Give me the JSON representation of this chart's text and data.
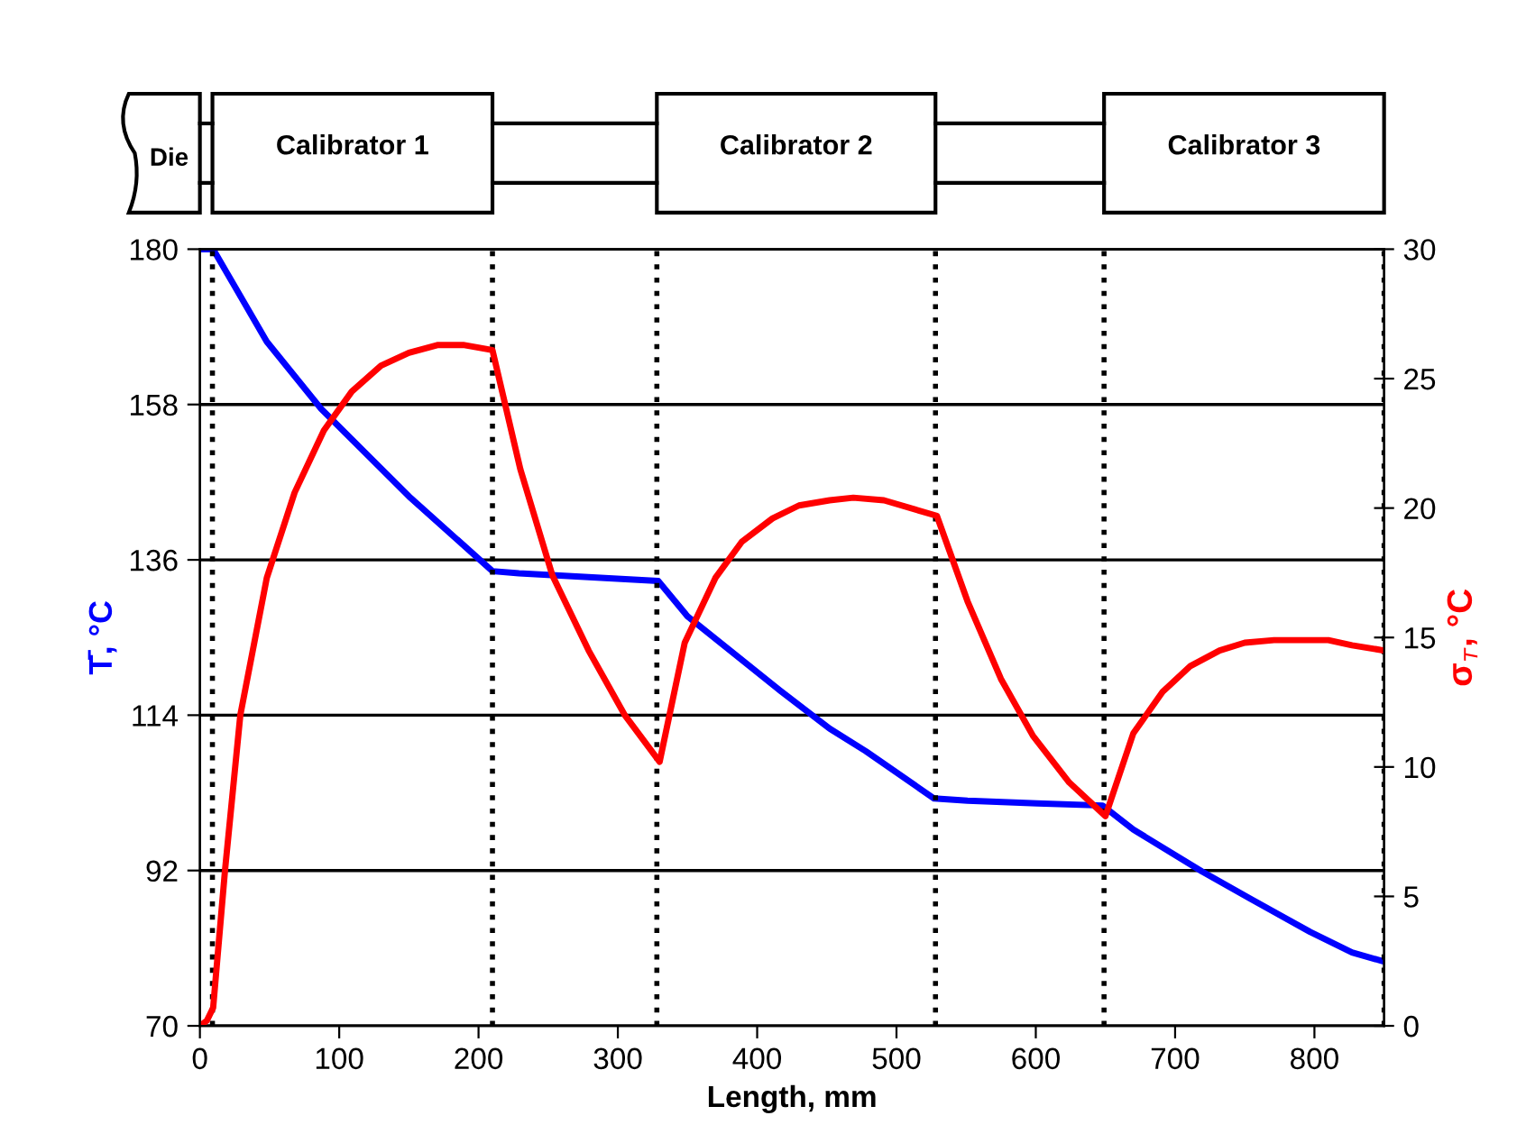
{
  "chart_data": {
    "type": "line",
    "xlabel": "Length, mm",
    "ylabel": "T̄, °C",
    "y2label": "σ$_{т}$, °C",
    "xlim": [
      0,
      850
    ],
    "xticks": [
      0,
      100,
      200,
      300,
      400,
      500,
      600,
      700,
      800
    ],
    "ylim": [
      70,
      180
    ],
    "yticks": [
      70,
      92,
      114,
      136,
      158,
      180
    ],
    "y2lim": [
      0,
      30
    ],
    "y2ticks": [
      0,
      5,
      10,
      15,
      20,
      25,
      30
    ],
    "grid": "y",
    "marker": "none",
    "line_style": "solid",
    "series": [
      {
        "color": "#0000ff",
        "x": [
          0,
          9.5,
          48,
          87,
          150,
          210,
          229,
          329,
          350,
          417,
          452,
          478,
          527,
          551,
          601,
          648,
          670,
          719,
          754,
          797,
          827,
          850
        ],
        "values": [
          180,
          180,
          166.9,
          157.4,
          145,
          134.4,
          134.1,
          133,
          128,
          117.4,
          112.1,
          108.9,
          102.2,
          101.9,
          101.5,
          101.2,
          97.8,
          91.9,
          88,
          83.3,
          80.4,
          79.1
        ]
      },
      {
        "color": "#ff0000",
        "axis": "y2",
        "x": [
          0,
          5,
          9.5,
          18,
          29,
          48,
          68,
          89,
          109,
          130,
          150,
          171,
          189,
          210,
          230,
          253,
          279,
          305,
          330,
          348,
          370,
          389,
          411,
          430,
          452,
          469,
          491,
          529,
          551,
          575,
          598,
          624,
          650,
          670,
          691,
          711,
          732,
          750,
          771,
          810,
          827,
          850
        ],
        "values": [
          0,
          0.2,
          0.7,
          6.0,
          12.0,
          17.3,
          20.6,
          23.0,
          24.5,
          25.5,
          26.0,
          26.3,
          26.3,
          26.1,
          21.5,
          17.4,
          14.5,
          12.0,
          10.2,
          14.8,
          17.3,
          18.7,
          19.6,
          20.1,
          20.3,
          20.4,
          20.3,
          19.7,
          16.4,
          13.4,
          11.2,
          9.4,
          8.1,
          11.3,
          12.9,
          13.9,
          14.5,
          14.8,
          14.9,
          14.9,
          14.7,
          14.5
        ]
      }
    ],
    "ref_lines": [
      {
        "axis": "x",
        "value": 9,
        "color": "#000000",
        "line_style": "dotted"
      },
      {
        "axis": "x",
        "value": 210,
        "color": "#000000",
        "line_style": "dotted"
      },
      {
        "axis": "x",
        "value": 328,
        "color": "#000000",
        "line_style": "dotted"
      },
      {
        "axis": "x",
        "value": 528,
        "color": "#000000",
        "line_style": "dotted"
      },
      {
        "axis": "x",
        "value": 649,
        "color": "#000000",
        "line_style": "dotted"
      },
      {
        "axis": "x",
        "value": 850,
        "color": "#000000",
        "line_style": "dotted"
      }
    ],
    "annotations": [
      "Die",
      "Calibrator 1",
      "Calibrator 2",
      "Calibrator 3"
    ]
  }
}
